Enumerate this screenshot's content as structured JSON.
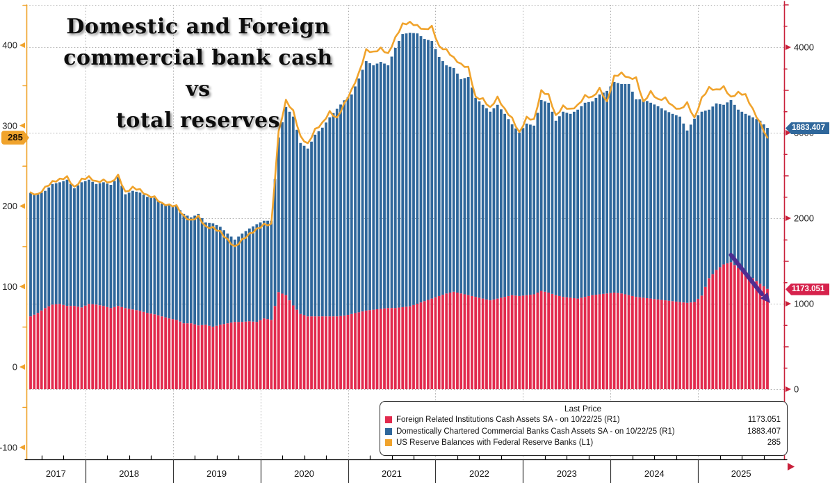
{
  "title": {
    "lines": [
      "Domestic and Foreign",
      "commercial bank cash vs",
      "total reserves"
    ]
  },
  "legend": {
    "header": "Last Price",
    "position": "bottom-right",
    "items": [
      {
        "label": "Foreign Related Institutions Cash Assets SA -  on 10/22/25  (R1)",
        "value": "1173.051",
        "color": "#e22a4d"
      },
      {
        "label": "Domestically Chartered Commercial Banks Cash Assets SA -  on 10/22/25  (R1)",
        "value": "1883.407",
        "color": "#2f679b"
      },
      {
        "label": "US Reserve Balances with Federal Reserve Banks  (L1)",
        "value": "285",
        "color": "#f0a32c"
      }
    ]
  },
  "badges": {
    "reserves": {
      "text": "285",
      "color": "#f0a32c"
    },
    "domestic": {
      "text": "1883.407",
      "color": "#2f679b"
    },
    "foreign": {
      "text": "1173.051",
      "color": "#d6224c"
    }
  },
  "axes": {
    "left": {
      "name": "L1",
      "ticks": [
        -100,
        0,
        100,
        200,
        300,
        400
      ],
      "color": "#f0a32c",
      "label_color": "#222222"
    },
    "right": {
      "name": "R1",
      "ticks": [
        0,
        1000,
        2000,
        3000,
        4000
      ],
      "color": "#c9203a",
      "label_color": "#222222"
    },
    "grid_color": "#a9a9a9",
    "x_axis_color": "#000000"
  },
  "x_axis": {
    "years": [
      "2017",
      "2018",
      "2019",
      "2020",
      "2021",
      "2022",
      "2023",
      "2024",
      "2025"
    ]
  },
  "chart_data": {
    "type": "bar",
    "subtype": "stacked-bars-plus-line",
    "title": "Domestic and Foreign commercial bank cash vs total reserves",
    "xlabel": "",
    "ylabel_left": "",
    "ylabel_right": "",
    "right_ylim": [
      0,
      4500
    ],
    "left_ylim": [
      -130,
      450
    ],
    "grid": true,
    "x": [
      "2017-05",
      "2017-06",
      "2017-07",
      "2017-08",
      "2017-09",
      "2017-10",
      "2017-11",
      "2017-12",
      "2018-01",
      "2018-02",
      "2018-03",
      "2018-04",
      "2018-05",
      "2018-06",
      "2018-07",
      "2018-08",
      "2018-09",
      "2018-10",
      "2018-11",
      "2018-12",
      "2019-01",
      "2019-02",
      "2019-03",
      "2019-04",
      "2019-05",
      "2019-06",
      "2019-07",
      "2019-08",
      "2019-09",
      "2019-10",
      "2019-11",
      "2019-12",
      "2020-01",
      "2020-02",
      "2020-03",
      "2020-04",
      "2020-05",
      "2020-06",
      "2020-07",
      "2020-08",
      "2020-09",
      "2020-10",
      "2020-11",
      "2020-12",
      "2021-01",
      "2021-02",
      "2021-03",
      "2021-04",
      "2021-05",
      "2021-06",
      "2021-07",
      "2021-08",
      "2021-09",
      "2021-10",
      "2021-11",
      "2021-12",
      "2022-01",
      "2022-02",
      "2022-03",
      "2022-04",
      "2022-05",
      "2022-06",
      "2022-07",
      "2022-08",
      "2022-09",
      "2022-10",
      "2022-11",
      "2022-12",
      "2023-01",
      "2023-02",
      "2023-03",
      "2023-04",
      "2023-05",
      "2023-06",
      "2023-07",
      "2023-08",
      "2023-09",
      "2023-10",
      "2023-11",
      "2023-12",
      "2024-01",
      "2024-02",
      "2024-03",
      "2024-04",
      "2024-05",
      "2024-06",
      "2024-07",
      "2024-08",
      "2024-09",
      "2024-10",
      "2024-11",
      "2024-12",
      "2025-01",
      "2025-02",
      "2025-03",
      "2025-04",
      "2025-05",
      "2025-06",
      "2025-07",
      "2025-08",
      "2025-09",
      "2025-10"
    ],
    "series": [
      {
        "name": "Foreign Related Institutions Cash Assets SA",
        "axis": "R1",
        "render": "bar",
        "stack": true,
        "color": "#e22a4d",
        "last_date": "10/22/25",
        "last_price": 1173.051,
        "values": [
          852,
          892,
          949,
          990,
          998,
          974,
          974,
          957,
          998,
          990,
          974,
          949,
          974,
          949,
          933,
          917,
          892,
          876,
          852,
          828,
          811,
          771,
          771,
          746,
          754,
          730,
          754,
          771,
          787,
          787,
          795,
          787,
          828,
          811,
          1136,
          1100,
          980,
          880,
          852,
          852,
          852,
          852,
          852,
          860,
          880,
          900,
          920,
          930,
          940,
          950,
          950,
          960,
          970,
          1000,
          1030,
          1060,
          1090,
          1120,
          1140,
          1120,
          1100,
          1080,
          1060,
          1040,
          1060,
          1080,
          1100,
          1090,
          1100,
          1110,
          1150,
          1130,
          1100,
          1080,
          1070,
          1060,
          1080,
          1100,
          1110,
          1120,
          1130,
          1120,
          1100,
          1080,
          1070,
          1060,
          1050,
          1040,
          1030,
          1020,
          1010,
          1020,
          1095,
          1298,
          1395,
          1460,
          1485,
          1420,
          1339,
          1298,
          1233,
          1173.051
        ]
      },
      {
        "name": "Domestically Chartered Commercial Banks Cash Assets SA",
        "axis": "R1",
        "render": "bar",
        "stack": true,
        "color": "#2f679b",
        "last_date": "10/22/25",
        "last_price": 1883.407,
        "values": [
          1443,
          1388,
          1371,
          1410,
          1422,
          1476,
          1376,
          1463,
          1452,
          1410,
          1446,
          1441,
          1506,
          1331,
          1387,
          1383,
          1358,
          1364,
          1318,
          1322,
          1329,
          1279,
          1239,
          1304,
          1196,
          1210,
          1146,
          1049,
          963,
          1033,
          1085,
          1143,
          1142,
          1159,
          1809,
          2202,
          2209,
          2000,
          1963,
          2125,
          2207,
          2328,
          2428,
          2520,
          2568,
          2735,
          2918,
          2859,
          2889,
          2839,
          3042,
          3194,
          3200,
          3162,
          3067,
          3013,
          2796,
          2669,
          2617,
          2507,
          2551,
          2328,
          2267,
          2206,
          2267,
          2141,
          1999,
          1912,
          2007,
          1973,
          2233,
          2221,
          2040,
          2166,
          2151,
          2210,
          2271,
          2267,
          2338,
          2369,
          2464,
          2450,
          2470,
          2311,
          2321,
          2291,
          2260,
          2221,
          2191,
          2169,
          2016,
          2144,
          2151,
          1972,
          1948,
          1867,
          1898,
          1850,
          1882,
          1882,
          1907,
          1883.407
        ]
      },
      {
        "name": "US Reserve Balances with Federal Reserve Banks",
        "axis": "L1",
        "render": "line",
        "color": "#f0a32c",
        "last_price": 285,
        "values": [
          217,
          214,
          223,
          230,
          233,
          236,
          223,
          233,
          236,
          230,
          232,
          229,
          238,
          217,
          223,
          220,
          213,
          211,
          203,
          201,
          200,
          187,
          182,
          187,
          174,
          173,
          168,
          158,
          149,
          158,
          165,
          171,
          177,
          177,
          292,
          331,
          318,
          286,
          277,
          295,
          303,
          317,
          309,
          327,
          344,
          365,
          394,
          391,
          396,
          389,
          409,
          426,
          428,
          424,
          419,
          423,
          398,
          394,
          384,
          376,
          372,
          335,
          333,
          322,
          335,
          320,
          309,
          291,
          310,
          307,
          343,
          338,
          312,
          324,
          320,
          325,
          337,
          335,
          346,
          329,
          361,
          365,
          359,
          359,
          329,
          342,
          332,
          334,
          324,
          320,
          328,
          309,
          334,
          347,
          344,
          348,
          335,
          341,
          338,
          320,
          303,
          285
        ]
      }
    ],
    "annotation": {
      "type": "trend-arrow",
      "color": "#4f2d91",
      "from": {
        "month": "2025-05",
        "r1": 1570
      },
      "to": {
        "month": "2025-10",
        "r1": 1040
      }
    }
  }
}
